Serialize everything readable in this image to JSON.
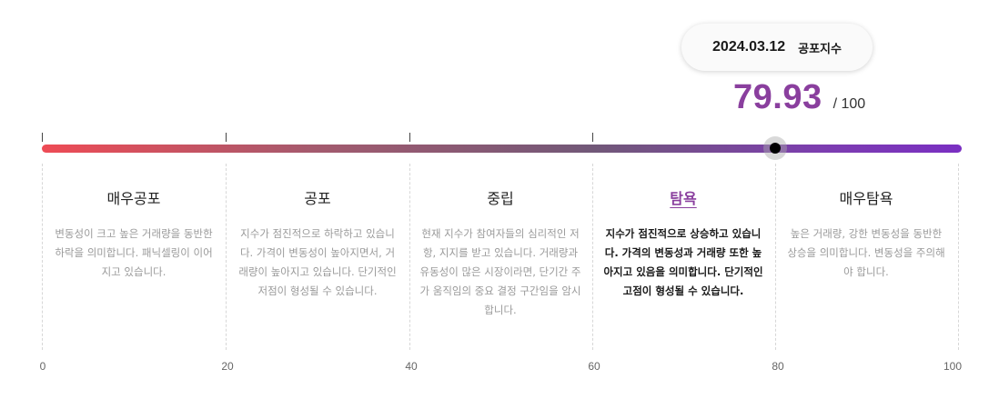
{
  "tooltip": {
    "date": "2024.03.12",
    "label": "공포지수"
  },
  "score": {
    "value": "79.93",
    "max": "/ 100",
    "value_num": 79.93,
    "max_num": 100
  },
  "colors": {
    "accent": "#8a3f9e",
    "gradient_start": "#ee4b55",
    "gradient_end": "#7a2fc2"
  },
  "ranges": [
    {
      "title": "매우공포",
      "desc": "변동성이 크고 높은 거래량을 동반한 하락을 의미합니다. 패닉셀링이 이어지고 있습니다.",
      "active": false
    },
    {
      "title": "공포",
      "desc": "지수가 점진적으로 하락하고 있습니다. 가격이 변동성이 높아지면서, 거래량이 높아지고 있습니다. 단기적인 저점이 형성될 수 있습니다.",
      "active": false
    },
    {
      "title": "중립",
      "desc": "현재 지수가 참여자들의 심리적인 저항, 지지를 받고 있습니다. 거래량과 유동성이 많은 시장이라면, 단기간 주가 움직임의 중요 결정 구간임을 암시합니다.",
      "active": false
    },
    {
      "title": "탐욕",
      "desc": "지수가 점진적으로 상승하고 있습니다. 가격의 변동성과 거래량 또한 높아지고 있음을 의미합니다. 단기적인 고점이 형성될 수 있습니다.",
      "active": true
    },
    {
      "title": "매우탐욕",
      "desc": "높은 거래량, 강한 변동성을 동반한 상승을 의미합니다. 변동성을 주의해야 합니다.",
      "active": false
    }
  ],
  "axis": [
    "0",
    "20",
    "40",
    "60",
    "80",
    "100"
  ]
}
